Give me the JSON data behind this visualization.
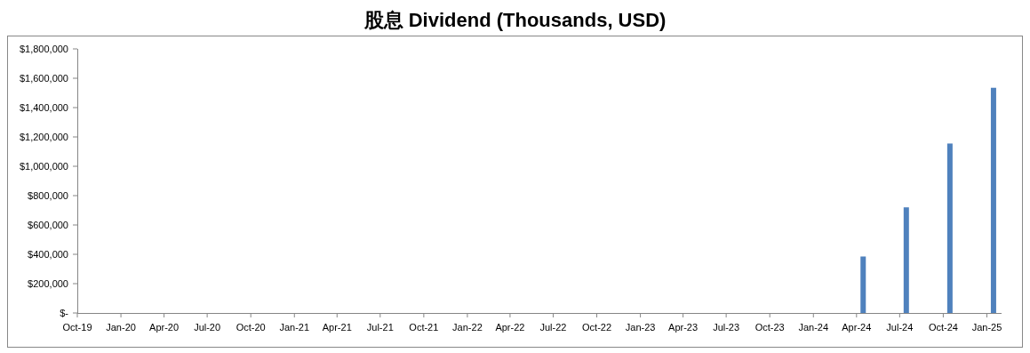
{
  "chart_data": {
    "type": "bar",
    "title": "股息 Dividend (Thousands, USD)",
    "x": [
      "2024-04-15",
      "2024-07-15",
      "2024-10-15",
      "2025-01-15"
    ],
    "series": [
      {
        "color": "#4f81bd",
        "values": [
          385000,
          720000,
          1155000,
          1535000
        ]
      }
    ],
    "xlim": [
      "2019-10-01",
      "2025-02-01"
    ],
    "xticks": [
      {
        "value": "2019-10-01",
        "label": "Oct-19"
      },
      {
        "value": "2020-01-01",
        "label": "Jan-20"
      },
      {
        "value": "2020-04-01",
        "label": "Apr-20"
      },
      {
        "value": "2020-07-01",
        "label": "Jul-20"
      },
      {
        "value": "2020-10-01",
        "label": "Oct-20"
      },
      {
        "value": "2021-01-01",
        "label": "Jan-21"
      },
      {
        "value": "2021-04-01",
        "label": "Apr-21"
      },
      {
        "value": "2021-07-01",
        "label": "Jul-21"
      },
      {
        "value": "2021-10-01",
        "label": "Oct-21"
      },
      {
        "value": "2022-01-01",
        "label": "Jan-22"
      },
      {
        "value": "2022-04-01",
        "label": "Apr-22"
      },
      {
        "value": "2022-07-01",
        "label": "Jul-22"
      },
      {
        "value": "2022-10-01",
        "label": "Oct-22"
      },
      {
        "value": "2023-01-01",
        "label": "Jan-23"
      },
      {
        "value": "2023-04-01",
        "label": "Apr-23"
      },
      {
        "value": "2023-07-01",
        "label": "Jul-23"
      },
      {
        "value": "2023-10-01",
        "label": "Oct-23"
      },
      {
        "value": "2024-01-01",
        "label": "Jan-24"
      },
      {
        "value": "2024-04-01",
        "label": "Apr-24"
      },
      {
        "value": "2024-07-01",
        "label": "Jul-24"
      },
      {
        "value": "2024-10-01",
        "label": "Oct-24"
      },
      {
        "value": "2025-01-01",
        "label": "Jan-25"
      }
    ],
    "ylim": [
      0,
      1800000
    ],
    "yticks": [
      {
        "value": 0,
        "label": "$-"
      },
      {
        "value": 200000,
        "label": "$200,000"
      },
      {
        "value": 400000,
        "label": "$400,000"
      },
      {
        "value": 600000,
        "label": "$600,000"
      },
      {
        "value": 800000,
        "label": "$800,000"
      },
      {
        "value": 1000000,
        "label": "$1,000,000"
      },
      {
        "value": 1200000,
        "label": "$1,200,000"
      },
      {
        "value": 1400000,
        "label": "$1,400,000"
      },
      {
        "value": 1600000,
        "label": "$1,600,000"
      },
      {
        "value": 1800000,
        "label": "$1,800,000"
      }
    ],
    "grid": false
  }
}
